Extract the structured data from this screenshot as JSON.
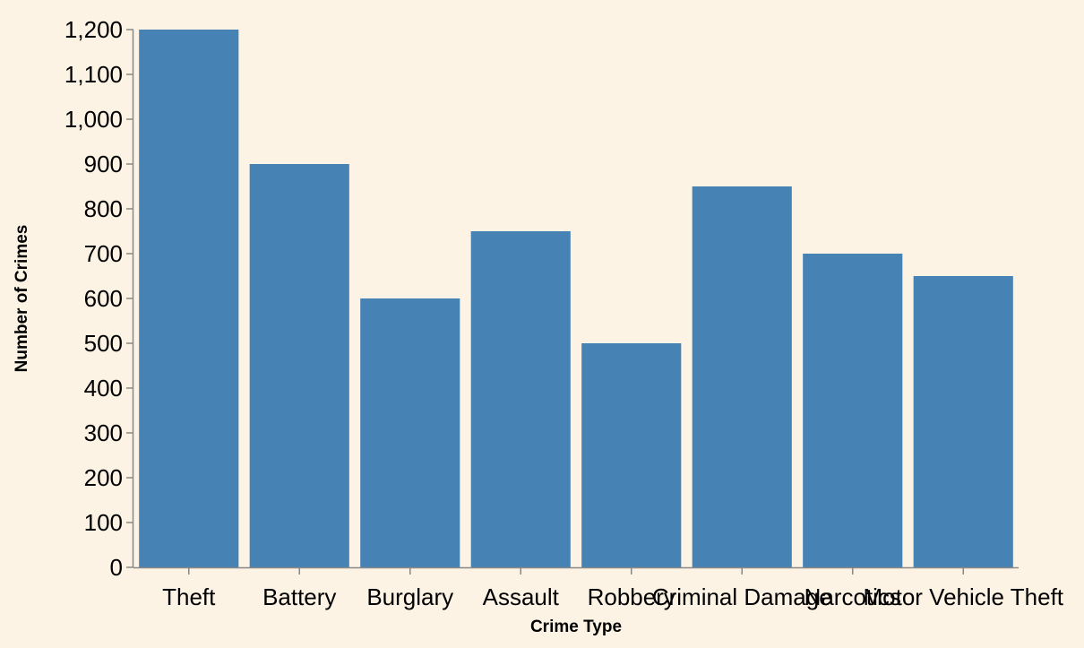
{
  "chart_data": {
    "type": "bar",
    "title": "",
    "xlabel": "Crime Type",
    "ylabel": "Number of Crimes",
    "categories": [
      "Theft",
      "Battery",
      "Burglary",
      "Assault",
      "Robbery",
      "Criminal Damage",
      "Narcotics",
      "Motor Vehicle Theft"
    ],
    "values": [
      1200,
      900,
      600,
      750,
      500,
      850,
      700,
      650
    ],
    "ylim": [
      0,
      1200
    ],
    "yticks": [
      0,
      100,
      200,
      300,
      400,
      500,
      600,
      700,
      800,
      900,
      1000,
      1100,
      1200
    ],
    "grid": false,
    "bar_color": "#4682b4",
    "background": "#fdf3e4",
    "axis_color": "#888888"
  }
}
